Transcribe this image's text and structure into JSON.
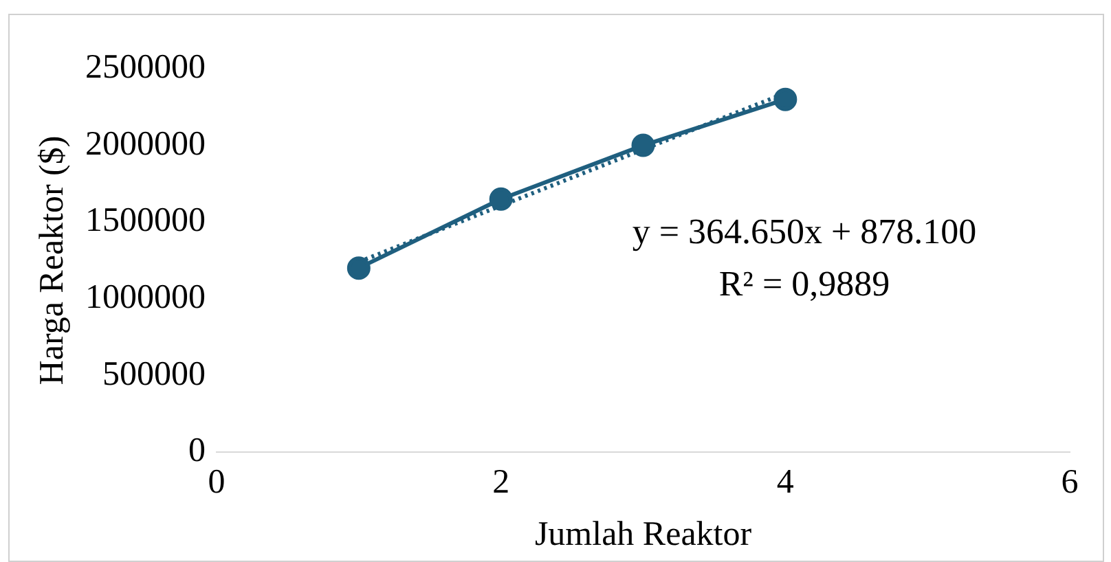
{
  "chart_data": {
    "type": "line",
    "xlabel": "Jumlah Reaktor",
    "ylabel": "Harga Reaktor ($)",
    "xlim": [
      0,
      6
    ],
    "xticks": [
      0,
      2,
      4,
      6
    ],
    "ylim": [
      0,
      2500000
    ],
    "yticks": [
      0,
      500000,
      1000000,
      1500000,
      2000000,
      2500000
    ],
    "grid": false,
    "legend": false,
    "marker": "circle",
    "series": [
      {
        "color": "#1f5f7f",
        "x": [
          1,
          2,
          3,
          4
        ],
        "values": [
          1200000,
          1650000,
          2000000,
          2300000
        ],
        "line_style": "solid"
      },
      {
        "color": "#1f5f7f",
        "x": [
          1,
          4
        ],
        "values": [
          1240000,
          2340000
        ],
        "line_style": "dotted",
        "marker": "none"
      }
    ],
    "annotations": [
      "y = 364.650x + 878.100",
      "R² = 0,9889"
    ]
  }
}
